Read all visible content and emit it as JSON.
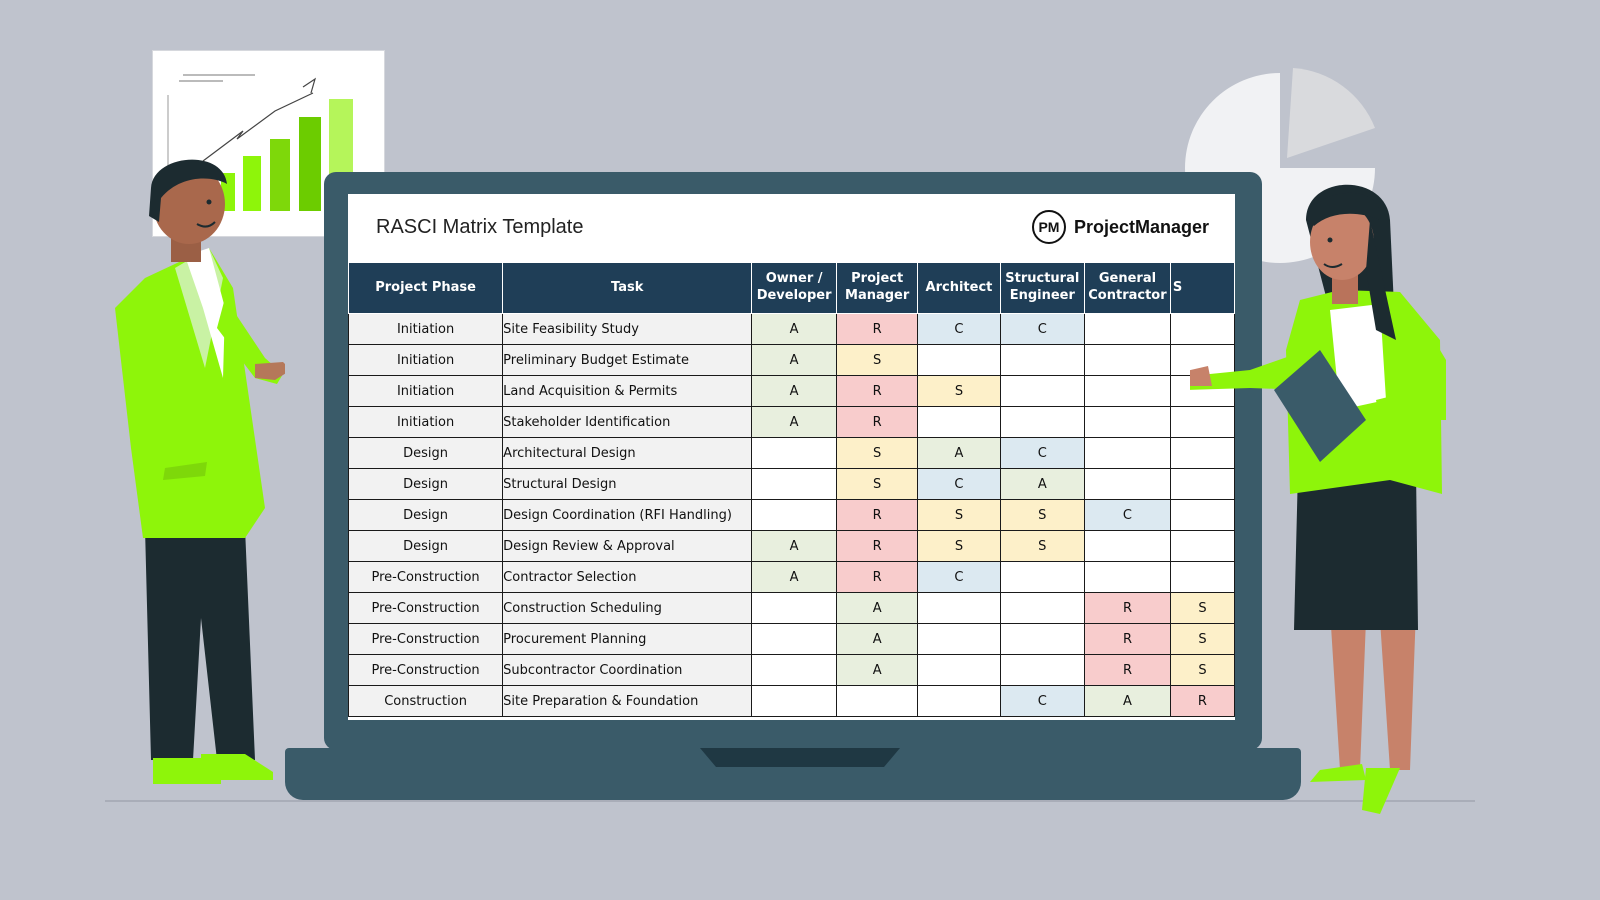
{
  "sheet": {
    "title": "RASCI Matrix Template",
    "brand": {
      "logo_text": "PM",
      "name": "ProjectManager"
    }
  },
  "table": {
    "headers": [
      "Project Phase",
      "Task",
      "Owner / Developer",
      "Project Manager",
      "Architect",
      "Structural Engineer",
      "General Contractor",
      "S"
    ],
    "rows": [
      {
        "phase": "Initiation",
        "task": "Site Feasibility Study",
        "cells": [
          "A",
          "R",
          "C",
          "C",
          "",
          ""
        ]
      },
      {
        "phase": "Initiation",
        "task": "Preliminary Budget Estimate",
        "cells": [
          "A",
          "S",
          "",
          "",
          "",
          ""
        ]
      },
      {
        "phase": "Initiation",
        "task": "Land Acquisition & Permits",
        "cells": [
          "A",
          "R",
          "S",
          "",
          "",
          ""
        ]
      },
      {
        "phase": "Initiation",
        "task": "Stakeholder Identification",
        "cells": [
          "A",
          "R",
          "",
          "",
          "",
          ""
        ]
      },
      {
        "phase": "Design",
        "task": "Architectural Design",
        "cells": [
          "",
          "S",
          "A",
          "C",
          "",
          ""
        ]
      },
      {
        "phase": "Design",
        "task": "Structural Design",
        "cells": [
          "",
          "S",
          "C",
          "A",
          "",
          ""
        ]
      },
      {
        "phase": "Design",
        "task": "Design Coordination (RFI Handling)",
        "cells": [
          "",
          "R",
          "S",
          "S",
          "C",
          ""
        ]
      },
      {
        "phase": "Design",
        "task": "Design Review & Approval",
        "cells": [
          "A",
          "R",
          "S",
          "S",
          "",
          ""
        ]
      },
      {
        "phase": "Pre-Construction",
        "task": "Contractor Selection",
        "cells": [
          "A",
          "R",
          "C",
          "",
          "",
          ""
        ]
      },
      {
        "phase": "Pre-Construction",
        "task": "Construction Scheduling",
        "cells": [
          "",
          "A",
          "",
          "",
          "R",
          "S"
        ]
      },
      {
        "phase": "Pre-Construction",
        "task": "Procurement Planning",
        "cells": [
          "",
          "A",
          "",
          "",
          "R",
          "S"
        ]
      },
      {
        "phase": "Pre-Construction",
        "task": "Subcontractor Coordination",
        "cells": [
          "",
          "A",
          "",
          "",
          "R",
          "S"
        ]
      },
      {
        "phase": "Construction",
        "task": "Site Preparation & Foundation",
        "cells": [
          "",
          "",
          "",
          "C",
          "A",
          "R"
        ]
      }
    ]
  },
  "colors": {
    "header_bg": "#1f3e57",
    "A": "#e8efde",
    "R": "#f8cccc",
    "S": "#fdf0c9",
    "C": "#dce9f1",
    "laptop": "#3a5b69",
    "jacket": "#8ef50a",
    "background": "#bfc3cd"
  }
}
